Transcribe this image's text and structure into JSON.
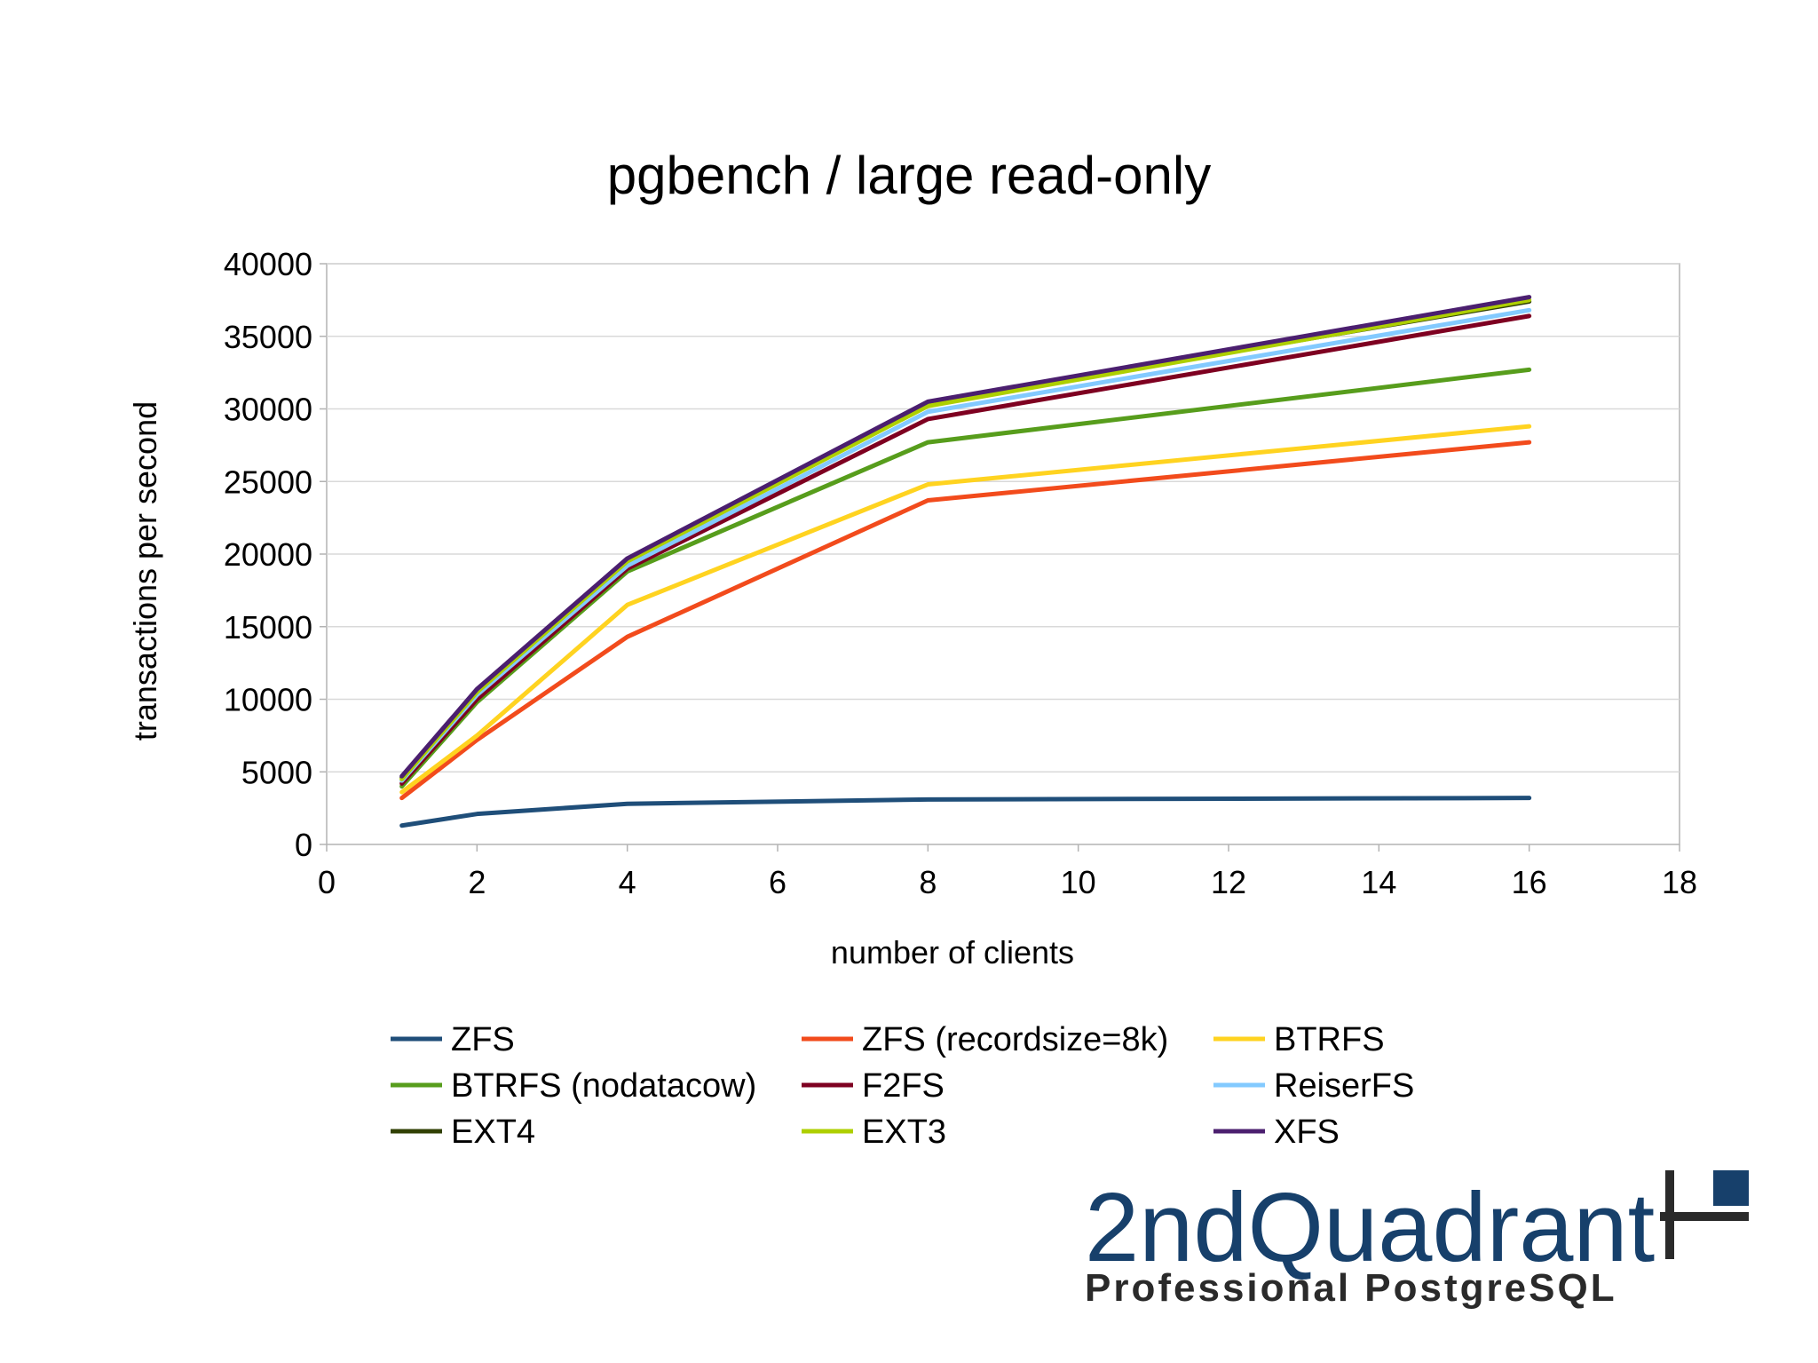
{
  "chart_data": {
    "type": "line",
    "title": "pgbench / large read-only",
    "xlabel": "number of clients",
    "ylabel": "transactions per second",
    "xlim": [
      0,
      18
    ],
    "ylim": [
      0,
      40000
    ],
    "x_ticks": [
      0,
      2,
      4,
      6,
      8,
      10,
      12,
      14,
      16,
      18
    ],
    "y_ticks": [
      0,
      5000,
      10000,
      15000,
      20000,
      25000,
      30000,
      35000,
      40000
    ],
    "x_tick_labels": [
      "0",
      "2",
      "4",
      "6",
      "8",
      "10",
      "12",
      "14",
      "16",
      "18"
    ],
    "y_tick_labels": [
      "0",
      "5000",
      "10000",
      "15000",
      "20000",
      "25000",
      "30000",
      "35000",
      "40000"
    ],
    "grid": "horizontal",
    "legend_position": "bottom",
    "x": [
      1,
      2,
      4,
      8,
      16
    ],
    "series": [
      {
        "name": "ZFS",
        "color": "#1f4e79",
        "values": [
          1300,
          2100,
          2800,
          3100,
          3200
        ]
      },
      {
        "name": "ZFS (recordsize=8k)",
        "color": "#f24b1c",
        "values": [
          3200,
          7200,
          14300,
          23700,
          27700
        ]
      },
      {
        "name": "BTRFS",
        "color": "#ffd320",
        "values": [
          3600,
          7500,
          16500,
          24800,
          28800
        ]
      },
      {
        "name": "BTRFS (nodatacow)",
        "color": "#579d1c",
        "values": [
          4000,
          9800,
          18800,
          27700,
          32700
        ]
      },
      {
        "name": "F2FS",
        "color": "#7e0021",
        "values": [
          4200,
          10000,
          19000,
          29300,
          36400
        ]
      },
      {
        "name": "ReiserFS",
        "color": "#83caff",
        "values": [
          4400,
          10300,
          19200,
          29800,
          36800
        ]
      },
      {
        "name": "EXT4",
        "color": "#314004",
        "values": [
          4600,
          10600,
          19600,
          30400,
          37400
        ]
      },
      {
        "name": "EXT3",
        "color": "#aecf00",
        "values": [
          4500,
          10500,
          19500,
          30200,
          37500
        ]
      },
      {
        "name": "XFS",
        "color": "#4b1f6f",
        "values": [
          4700,
          10700,
          19700,
          30500,
          37700
        ]
      }
    ]
  },
  "logo": {
    "name": "2ndQuadrant",
    "tagline": "Professional PostgreSQL",
    "primary_color": "#17406b",
    "secondary_color": "#2a2a2a"
  }
}
